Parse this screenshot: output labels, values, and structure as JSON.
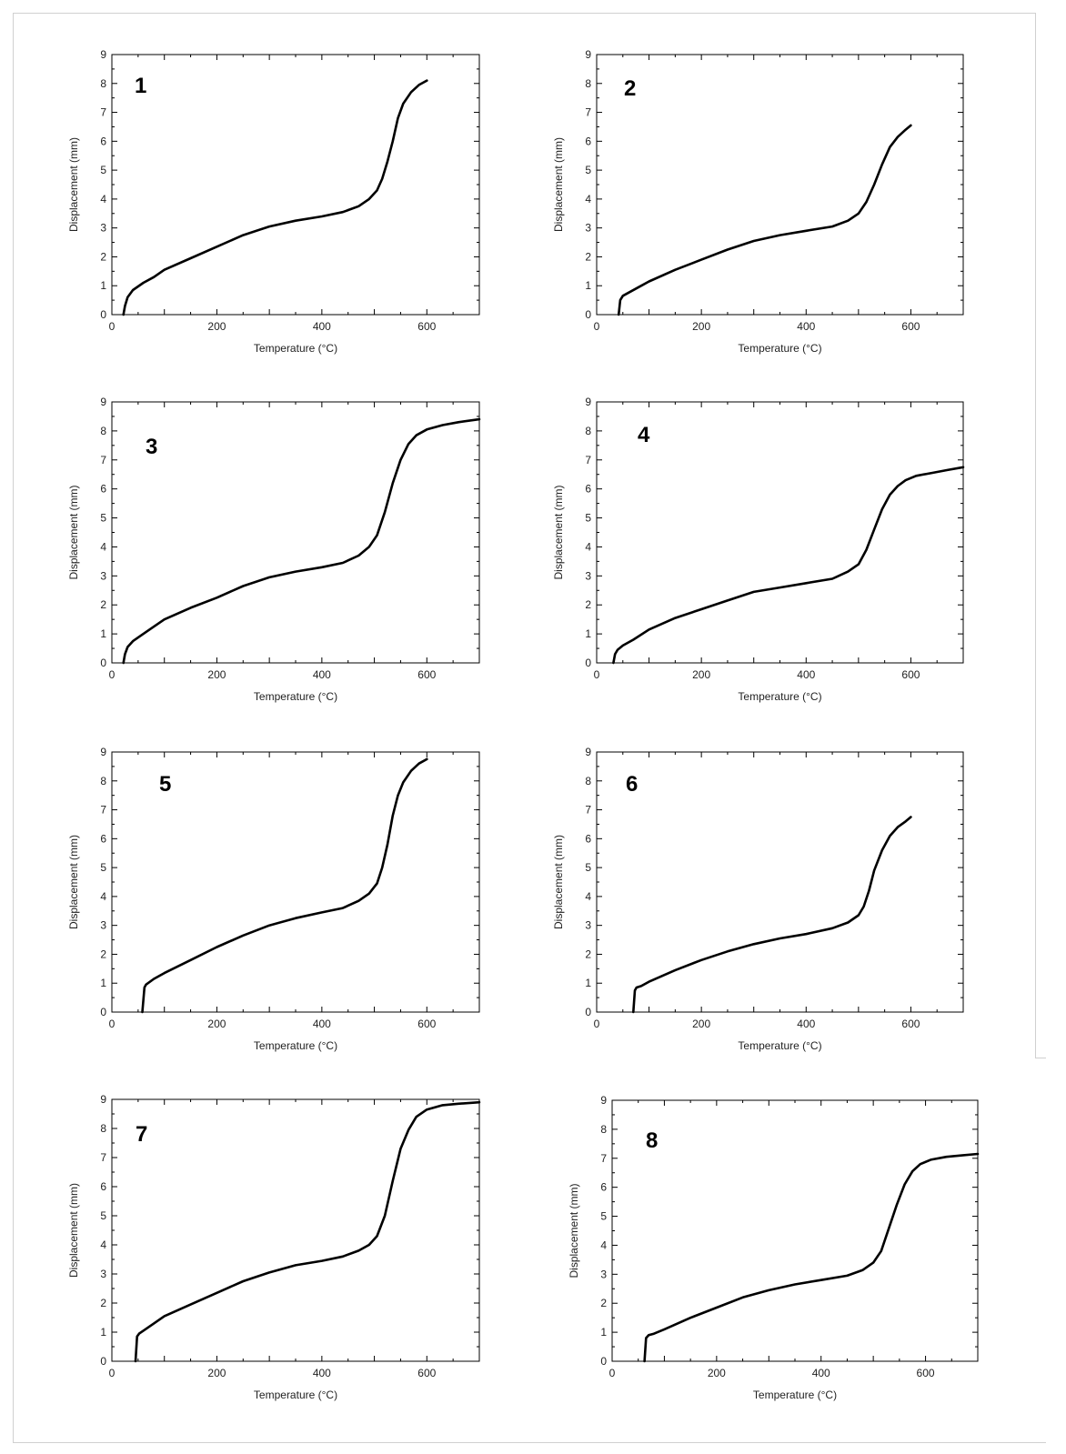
{
  "chart_data": [
    {
      "type": "line",
      "panel_label": "1",
      "xlabel": "Temperature (°C)",
      "ylabel": "Displacement (mm)",
      "xlim": [
        0,
        700
      ],
      "ylim": [
        0,
        9
      ],
      "xticks": [
        0,
        200,
        400,
        600
      ],
      "yticks": [
        0,
        1,
        2,
        3,
        4,
        5,
        6,
        7,
        8,
        9
      ],
      "grid": false,
      "series": [
        {
          "x": [
            22,
            25,
            30,
            40,
            60,
            80,
            100,
            150,
            200,
            250,
            300,
            350,
            400,
            440,
            470,
            490,
            505,
            515,
            525,
            535,
            545,
            555,
            570,
            585,
            600
          ],
          "y": [
            0,
            0.3,
            0.6,
            0.85,
            1.1,
            1.3,
            1.55,
            1.95,
            2.35,
            2.75,
            3.05,
            3.25,
            3.4,
            3.55,
            3.75,
            4.0,
            4.3,
            4.7,
            5.3,
            6.0,
            6.8,
            7.3,
            7.7,
            7.95,
            8.1
          ]
        }
      ]
    },
    {
      "type": "line",
      "panel_label": "2",
      "xlabel": "Temperature (°C)",
      "ylabel": "Displacement (mm)",
      "xlim": [
        0,
        700
      ],
      "ylim": [
        0,
        9
      ],
      "xticks": [
        0,
        200,
        400,
        600
      ],
      "yticks": [
        0,
        1,
        2,
        3,
        4,
        5,
        6,
        7,
        8,
        9
      ],
      "grid": false,
      "series": [
        {
          "x": [
            42,
            45,
            50,
            60,
            80,
            100,
            150,
            200,
            250,
            300,
            350,
            400,
            450,
            480,
            500,
            515,
            530,
            545,
            560,
            575,
            590,
            600
          ],
          "y": [
            0,
            0.5,
            0.65,
            0.75,
            0.95,
            1.15,
            1.55,
            1.9,
            2.25,
            2.55,
            2.75,
            2.9,
            3.05,
            3.25,
            3.5,
            3.9,
            4.5,
            5.2,
            5.8,
            6.15,
            6.4,
            6.55
          ]
        }
      ]
    },
    {
      "type": "line",
      "panel_label": "3",
      "xlabel": "Temperature (°C)",
      "ylabel": "Displacement (mm)",
      "xlim": [
        0,
        700
      ],
      "ylim": [
        0,
        9
      ],
      "xticks": [
        0,
        200,
        400,
        600
      ],
      "yticks": [
        0,
        1,
        2,
        3,
        4,
        5,
        6,
        7,
        8,
        9
      ],
      "grid": false,
      "series": [
        {
          "x": [
            22,
            25,
            30,
            40,
            60,
            80,
            100,
            150,
            200,
            250,
            300,
            350,
            400,
            440,
            470,
            490,
            505,
            520,
            535,
            550,
            565,
            580,
            600,
            630,
            660,
            700
          ],
          "y": [
            0,
            0.3,
            0.55,
            0.75,
            1.0,
            1.25,
            1.5,
            1.9,
            2.25,
            2.65,
            2.95,
            3.15,
            3.3,
            3.45,
            3.7,
            4.0,
            4.4,
            5.2,
            6.2,
            7.0,
            7.55,
            7.85,
            8.05,
            8.2,
            8.3,
            8.4
          ]
        }
      ]
    },
    {
      "type": "line",
      "panel_label": "4",
      "xlabel": "Temperature (°C)",
      "ylabel": "Displacement (mm)",
      "xlim": [
        0,
        700
      ],
      "ylim": [
        0,
        9
      ],
      "xticks": [
        0,
        200,
        400,
        600
      ],
      "yticks": [
        0,
        1,
        2,
        3,
        4,
        5,
        6,
        7,
        8,
        9
      ],
      "grid": false,
      "series": [
        {
          "x": [
            32,
            35,
            40,
            50,
            70,
            100,
            150,
            200,
            250,
            300,
            350,
            400,
            450,
            480,
            500,
            515,
            530,
            545,
            560,
            575,
            590,
            610,
            640,
            670,
            700
          ],
          "y": [
            0,
            0.3,
            0.45,
            0.6,
            0.8,
            1.15,
            1.55,
            1.85,
            2.15,
            2.45,
            2.6,
            2.75,
            2.9,
            3.15,
            3.4,
            3.9,
            4.6,
            5.3,
            5.8,
            6.1,
            6.3,
            6.45,
            6.55,
            6.65,
            6.75
          ]
        }
      ]
    },
    {
      "type": "line",
      "panel_label": "5",
      "xlabel": "Temperature (°C)",
      "ylabel": "Displacement (mm)",
      "xlim": [
        0,
        700
      ],
      "ylim": [
        0,
        9
      ],
      "xticks": [
        0,
        200,
        400,
        600
      ],
      "yticks": [
        0,
        1,
        2,
        3,
        4,
        5,
        6,
        7,
        8,
        9
      ],
      "grid": false,
      "series": [
        {
          "x": [
            58,
            62,
            65,
            80,
            100,
            150,
            200,
            250,
            300,
            350,
            400,
            440,
            470,
            490,
            505,
            515,
            525,
            535,
            545,
            555,
            570,
            585,
            600
          ],
          "y": [
            0,
            0.85,
            0.95,
            1.15,
            1.35,
            1.8,
            2.25,
            2.65,
            3.0,
            3.25,
            3.45,
            3.6,
            3.85,
            4.1,
            4.45,
            5.0,
            5.8,
            6.8,
            7.5,
            7.95,
            8.35,
            8.6,
            8.75
          ]
        }
      ]
    },
    {
      "type": "line",
      "panel_label": "6",
      "xlabel": "Temperature (°C)",
      "ylabel": "Displacement (mm)",
      "xlim": [
        0,
        700
      ],
      "ylim": [
        0,
        9
      ],
      "xticks": [
        0,
        200,
        400,
        600
      ],
      "yticks": [
        0,
        1,
        2,
        3,
        4,
        5,
        6,
        7,
        8,
        9
      ],
      "grid": false,
      "series": [
        {
          "x": [
            70,
            73,
            76,
            85,
            100,
            150,
            200,
            250,
            300,
            350,
            400,
            450,
            480,
            500,
            510,
            520,
            530,
            545,
            560,
            575,
            590,
            600
          ],
          "y": [
            0,
            0.75,
            0.85,
            0.9,
            1.05,
            1.45,
            1.8,
            2.1,
            2.35,
            2.55,
            2.7,
            2.9,
            3.1,
            3.35,
            3.65,
            4.2,
            4.9,
            5.6,
            6.1,
            6.4,
            6.6,
            6.75
          ]
        }
      ]
    },
    {
      "type": "line",
      "panel_label": "7",
      "xlabel": "Temperature (°C)",
      "ylabel": "Displacement (mm)",
      "xlim": [
        0,
        700
      ],
      "ylim": [
        0,
        9
      ],
      "xticks": [
        0,
        200,
        400,
        600
      ],
      "yticks": [
        0,
        1,
        2,
        3,
        4,
        5,
        6,
        7,
        8,
        9
      ],
      "grid": false,
      "series": [
        {
          "x": [
            45,
            48,
            52,
            60,
            80,
            100,
            150,
            200,
            250,
            300,
            350,
            400,
            440,
            470,
            490,
            505,
            520,
            535,
            550,
            565,
            580,
            600,
            630,
            660,
            700
          ],
          "y": [
            0,
            0.85,
            0.95,
            1.05,
            1.3,
            1.55,
            1.95,
            2.35,
            2.75,
            3.05,
            3.3,
            3.45,
            3.6,
            3.8,
            4.0,
            4.3,
            5.0,
            6.2,
            7.3,
            7.95,
            8.4,
            8.65,
            8.8,
            8.85,
            8.9
          ]
        }
      ]
    },
    {
      "type": "line",
      "panel_label": "8",
      "xlabel": "Temperature (°C)",
      "ylabel": "Displacement (mm)",
      "xlim": [
        0,
        700
      ],
      "ylim": [
        0,
        9
      ],
      "xticks": [
        0,
        200,
        400,
        600
      ],
      "yticks": [
        0,
        1,
        2,
        3,
        4,
        5,
        6,
        7,
        8,
        9
      ],
      "grid": false,
      "series": [
        {
          "x": [
            62,
            65,
            70,
            80,
            100,
            150,
            200,
            250,
            300,
            350,
            400,
            450,
            480,
            500,
            515,
            530,
            545,
            560,
            575,
            590,
            610,
            640,
            670,
            700
          ],
          "y": [
            0,
            0.8,
            0.9,
            0.95,
            1.1,
            1.5,
            1.85,
            2.2,
            2.45,
            2.65,
            2.8,
            2.95,
            3.15,
            3.4,
            3.8,
            4.6,
            5.4,
            6.1,
            6.55,
            6.8,
            6.95,
            7.05,
            7.1,
            7.15
          ]
        }
      ]
    }
  ]
}
